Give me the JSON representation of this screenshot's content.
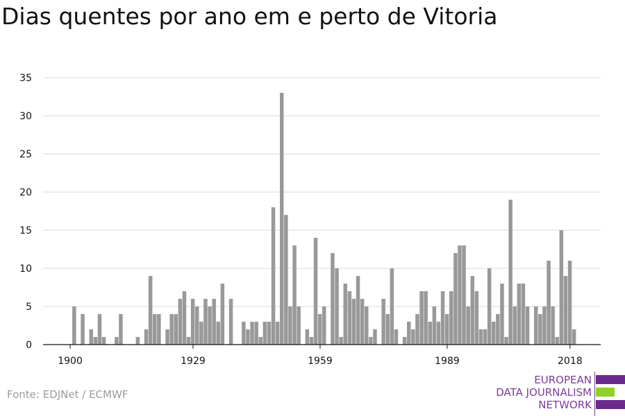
{
  "chart_data": {
    "type": "bar",
    "title": "Dias quentes por ano em e perto de Vitoria",
    "xlabel": "",
    "ylabel": "",
    "x_range": [
      1900,
      2019
    ],
    "ylim": [
      0,
      35
    ],
    "yticks": [
      0,
      5,
      10,
      15,
      20,
      25,
      30,
      35
    ],
    "xticks": [
      1900,
      1929,
      1959,
      1989,
      2018
    ],
    "grid": true,
    "bar_color": "#999999",
    "series": [
      {
        "x": [
          1900,
          1901,
          1902,
          1903,
          1904,
          1905,
          1906,
          1907,
          1908,
          1909,
          1910,
          1911,
          1912,
          1913,
          1914,
          1915,
          1916,
          1917,
          1918,
          1919,
          1920,
          1921,
          1922,
          1923,
          1924,
          1925,
          1926,
          1927,
          1928,
          1929,
          1930,
          1931,
          1932,
          1933,
          1934,
          1935,
          1936,
          1937,
          1938,
          1939,
          1940,
          1941,
          1942,
          1943,
          1944,
          1945,
          1946,
          1947,
          1948,
          1949,
          1950,
          1951,
          1952,
          1953,
          1954,
          1955,
          1956,
          1957,
          1958,
          1959,
          1960,
          1961,
          1962,
          1963,
          1964,
          1965,
          1966,
          1967,
          1968,
          1969,
          1970,
          1971,
          1972,
          1973,
          1974,
          1975,
          1976,
          1977,
          1978,
          1979,
          1980,
          1981,
          1982,
          1983,
          1984,
          1985,
          1986,
          1987,
          1988,
          1989,
          1990,
          1991,
          1992,
          1993,
          1994,
          1995,
          1996,
          1997,
          1998,
          1999,
          2000,
          2001,
          2002,
          2003,
          2004,
          2005,
          2006,
          2007,
          2008,
          2009,
          2010,
          2011,
          2012,
          2013,
          2014,
          2015,
          2016,
          2017,
          2018,
          2019
        ],
        "values": [
          0,
          5,
          0,
          4,
          0,
          2,
          1,
          4,
          1,
          0,
          0,
          1,
          4,
          0,
          0,
          0,
          1,
          0,
          2,
          9,
          4,
          4,
          0,
          2,
          4,
          4,
          6,
          7,
          1,
          6,
          5,
          3,
          6,
          5,
          6,
          3,
          8,
          0,
          6,
          0,
          0,
          3,
          2,
          3,
          3,
          1,
          3,
          3,
          18,
          3,
          33,
          17,
          5,
          13,
          5,
          0,
          2,
          1,
          14,
          4,
          5,
          0,
          12,
          10,
          1,
          8,
          7,
          6,
          9,
          6,
          5,
          1,
          2,
          0,
          6,
          4,
          10,
          2,
          0,
          1,
          3,
          2,
          4,
          7,
          7,
          3,
          5,
          3,
          7,
          4,
          7,
          12,
          13,
          13,
          5,
          9,
          7,
          2,
          2,
          10,
          3,
          4,
          8,
          1,
          19,
          5,
          8,
          8,
          5,
          0,
          5,
          4,
          5,
          11,
          5,
          1,
          15,
          9,
          11,
          2
        ]
      }
    ]
  },
  "source": "Fonte: EDJNet / ECMWF",
  "logo": {
    "lines": [
      "EUROPEAN",
      "DATA JOURNALISM",
      "NETWORK"
    ],
    "colors": [
      "#6a2a8c",
      "#8fd12a",
      "#6a2a8c"
    ]
  }
}
